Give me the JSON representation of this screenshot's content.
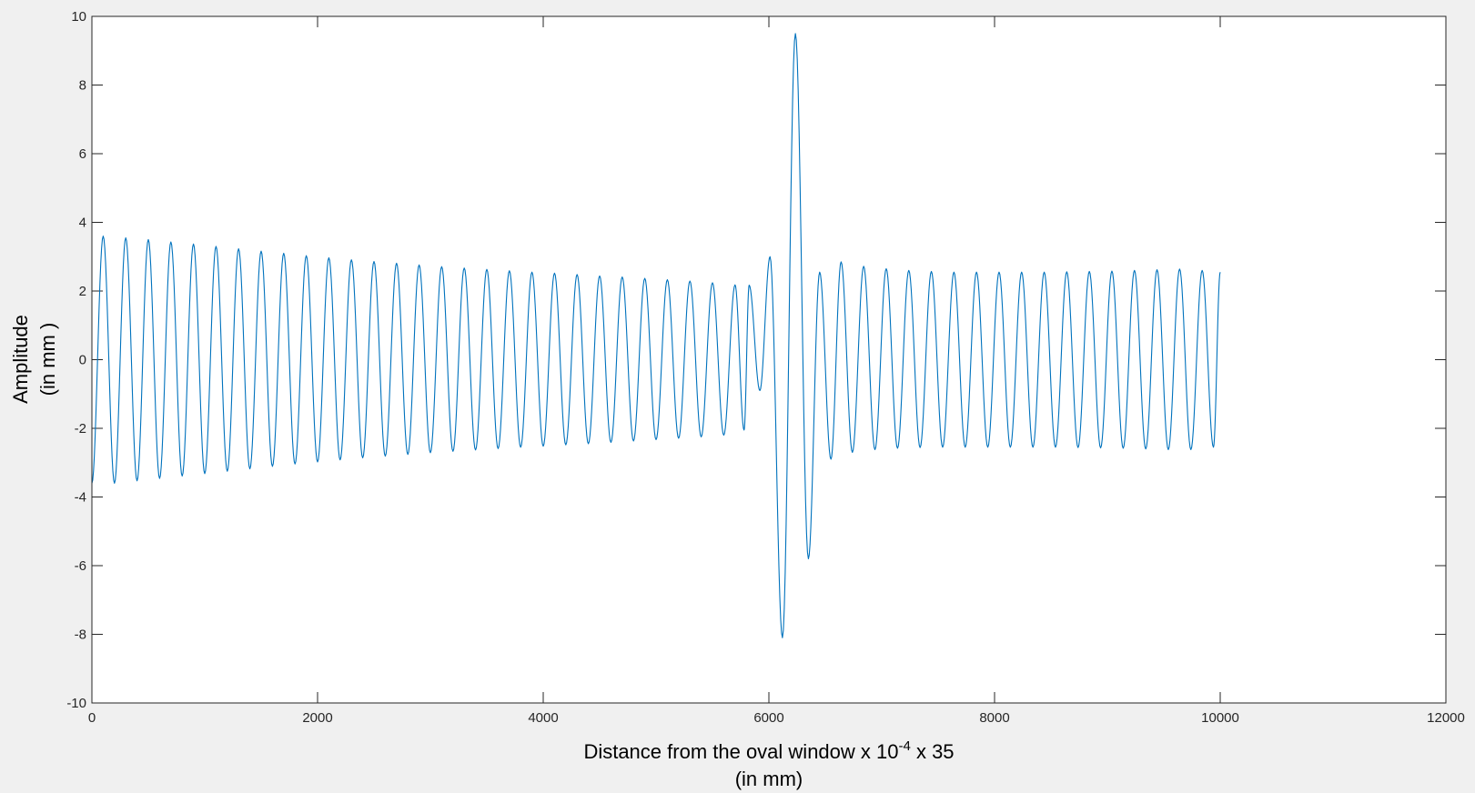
{
  "figure": {
    "background": "#f0f0f0"
  },
  "chart_data": {
    "type": "line",
    "title": "",
    "xlabel_line1_prefix": "Distance from the oval window x 10",
    "xlabel_exponent": "-4",
    "xlabel_line1_suffix": " x 35",
    "xlabel_line2": "(in mm)",
    "ylabel_line1": "Amplitude",
    "ylabel_line2": "(in mm )",
    "xlim": [
      0,
      12000
    ],
    "ylim": [
      -10,
      10
    ],
    "xticks": [
      0,
      2000,
      4000,
      6000,
      8000,
      10000,
      12000
    ],
    "yticks": [
      -10,
      -8,
      -6,
      -4,
      -2,
      0,
      2,
      4,
      6,
      8,
      10
    ],
    "grid": false,
    "line_color": "#0072bd",
    "axes_color": "#262626",
    "series": [
      {
        "x_start": 0,
        "x_end": 10000,
        "oscillation_period": 200,
        "start_value": -3.6,
        "end_value": 2.55,
        "peaks": [
          [
            100,
            3.6
          ],
          [
            300,
            3.55
          ],
          [
            500,
            3.5
          ],
          [
            700,
            3.43
          ],
          [
            900,
            3.37
          ],
          [
            1100,
            3.3
          ],
          [
            1300,
            3.23
          ],
          [
            1500,
            3.16
          ],
          [
            1700,
            3.1
          ],
          [
            1900,
            3.03
          ],
          [
            2100,
            2.97
          ],
          [
            2300,
            2.91
          ],
          [
            2500,
            2.86
          ],
          [
            2700,
            2.81
          ],
          [
            2900,
            2.76
          ],
          [
            3100,
            2.71
          ],
          [
            3300,
            2.67
          ],
          [
            3500,
            2.63
          ],
          [
            3700,
            2.59
          ],
          [
            3900,
            2.55
          ],
          [
            4100,
            2.52
          ],
          [
            4300,
            2.48
          ],
          [
            4500,
            2.44
          ],
          [
            4700,
            2.41
          ],
          [
            4900,
            2.37
          ],
          [
            5100,
            2.33
          ],
          [
            5300,
            2.29
          ],
          [
            5500,
            2.24
          ],
          [
            5700,
            2.18
          ],
          [
            5825,
            2.17
          ],
          [
            6010,
            3.0
          ],
          [
            6235,
            9.5
          ],
          [
            6450,
            2.55
          ],
          [
            6640,
            2.85
          ],
          [
            6840,
            2.72
          ],
          [
            7040,
            2.65
          ],
          [
            7240,
            2.6
          ],
          [
            7440,
            2.57
          ],
          [
            7640,
            2.55
          ],
          [
            7840,
            2.55
          ],
          [
            8040,
            2.55
          ],
          [
            8240,
            2.55
          ],
          [
            8440,
            2.55
          ],
          [
            8640,
            2.56
          ],
          [
            8840,
            2.57
          ],
          [
            9040,
            2.58
          ],
          [
            9240,
            2.6
          ],
          [
            9440,
            2.62
          ],
          [
            9640,
            2.64
          ],
          [
            9840,
            2.6
          ]
        ],
        "troughs": [
          [
            200,
            -3.6
          ],
          [
            400,
            -3.53
          ],
          [
            600,
            -3.46
          ],
          [
            800,
            -3.39
          ],
          [
            1000,
            -3.32
          ],
          [
            1200,
            -3.25
          ],
          [
            1400,
            -3.18
          ],
          [
            1600,
            -3.11
          ],
          [
            1800,
            -3.04
          ],
          [
            2000,
            -2.98
          ],
          [
            2200,
            -2.92
          ],
          [
            2400,
            -2.86
          ],
          [
            2600,
            -2.81
          ],
          [
            2800,
            -2.76
          ],
          [
            3000,
            -2.71
          ],
          [
            3200,
            -2.67
          ],
          [
            3400,
            -2.63
          ],
          [
            3600,
            -2.59
          ],
          [
            3800,
            -2.55
          ],
          [
            4000,
            -2.52
          ],
          [
            4200,
            -2.48
          ],
          [
            4400,
            -2.45
          ],
          [
            4600,
            -2.41
          ],
          [
            4800,
            -2.37
          ],
          [
            5000,
            -2.33
          ],
          [
            5200,
            -2.29
          ],
          [
            5400,
            -2.25
          ],
          [
            5600,
            -2.2
          ],
          [
            5780,
            -2.05
          ],
          [
            5920,
            -0.9
          ],
          [
            6120,
            -8.1
          ],
          [
            6350,
            -5.8
          ],
          [
            6550,
            -2.9
          ],
          [
            6740,
            -2.7
          ],
          [
            6940,
            -2.62
          ],
          [
            7140,
            -2.58
          ],
          [
            7340,
            -2.56
          ],
          [
            7540,
            -2.55
          ],
          [
            7740,
            -2.55
          ],
          [
            7940,
            -2.55
          ],
          [
            8140,
            -2.55
          ],
          [
            8340,
            -2.55
          ],
          [
            8540,
            -2.55
          ],
          [
            8740,
            -2.56
          ],
          [
            8940,
            -2.57
          ],
          [
            9140,
            -2.58
          ],
          [
            9340,
            -2.6
          ],
          [
            9540,
            -2.62
          ],
          [
            9740,
            -2.62
          ],
          [
            9940,
            -2.55
          ]
        ]
      }
    ]
  }
}
